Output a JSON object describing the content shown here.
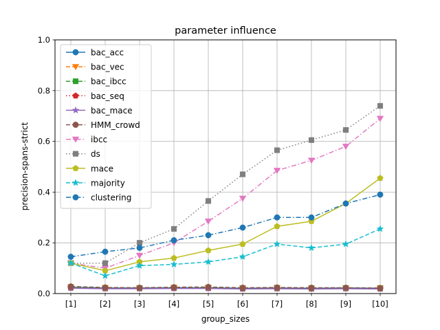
{
  "chart_data": {
    "type": "line",
    "title": "parameter influence",
    "xlabel": "group_sizes",
    "ylabel": "precision-spans-strict",
    "categories": [
      "[1]",
      "[2]",
      "[3]",
      "[4]",
      "[5]",
      "[6]",
      "[7]",
      "[8]",
      "[9]",
      "[10]"
    ],
    "ylim": [
      0,
      1.0
    ],
    "yticks": [
      "0.0",
      "0.2",
      "0.4",
      "0.6",
      "0.8",
      "1.0"
    ],
    "grid": true,
    "legend_position": "upper-left",
    "series": [
      {
        "name": "bac_acc",
        "color": "#1f77b4",
        "marker": "circle",
        "dash": "solid",
        "values": [
          0.025,
          0.022,
          0.022,
          0.023,
          0.023,
          0.021,
          0.022,
          0.021,
          0.022,
          0.021
        ]
      },
      {
        "name": "bac_vec",
        "color": "#ff7f0e",
        "marker": "triangle-down",
        "dash": "dashed",
        "values": [
          0.026,
          0.023,
          0.022,
          0.024,
          0.024,
          0.022,
          0.023,
          0.022,
          0.022,
          0.022
        ]
      },
      {
        "name": "bac_ibcc",
        "color": "#2ca02c",
        "marker": "square",
        "dash": "dashed",
        "values": [
          0.024,
          0.021,
          0.021,
          0.022,
          0.022,
          0.02,
          0.021,
          0.02,
          0.021,
          0.02
        ]
      },
      {
        "name": "bac_seq",
        "color": "#d62728",
        "marker": "pentagon",
        "dash": "dotted",
        "values": [
          0.022,
          0.02,
          0.02,
          0.021,
          0.021,
          0.019,
          0.02,
          0.019,
          0.02,
          0.019
        ]
      },
      {
        "name": "bac_mace",
        "color": "#9467bd",
        "marker": "star",
        "dash": "solid",
        "values": [
          0.021,
          0.019,
          0.019,
          0.02,
          0.02,
          0.018,
          0.019,
          0.018,
          0.019,
          0.018
        ]
      },
      {
        "name": "HMM_crowd",
        "color": "#8c564b",
        "marker": "circle",
        "dash": "dashed",
        "values": [
          0.028,
          0.024,
          0.023,
          0.025,
          0.026,
          0.023,
          0.024,
          0.023,
          0.023,
          0.022
        ]
      },
      {
        "name": "ibcc",
        "color": "#e377c2",
        "marker": "triangle-down",
        "dash": "dashdot",
        "values": [
          0.12,
          0.1,
          0.15,
          0.2,
          0.285,
          0.375,
          0.485,
          0.525,
          0.58,
          0.69
        ]
      },
      {
        "name": "ds",
        "color": "#7f7f7f",
        "marker": "square",
        "dash": "dotted",
        "values": [
          0.12,
          0.12,
          0.2,
          0.255,
          0.365,
          0.47,
          0.565,
          0.605,
          0.645,
          0.74
        ]
      },
      {
        "name": "mace",
        "color": "#bcbd22",
        "marker": "pentagon",
        "dash": "solid",
        "values": [
          0.12,
          0.09,
          0.125,
          0.14,
          0.17,
          0.195,
          0.265,
          0.285,
          0.355,
          0.455
        ]
      },
      {
        "name": "majority",
        "color": "#17becf",
        "marker": "star",
        "dash": "dashed",
        "values": [
          0.12,
          0.07,
          0.11,
          0.115,
          0.125,
          0.145,
          0.195,
          0.18,
          0.195,
          0.255
        ]
      },
      {
        "name": "clustering",
        "color": "#1f77b4",
        "marker": "circle",
        "dash": "dashdot",
        "values": [
          0.145,
          0.165,
          0.18,
          0.21,
          0.23,
          0.26,
          0.3,
          0.3,
          0.355,
          0.39
        ]
      }
    ]
  }
}
